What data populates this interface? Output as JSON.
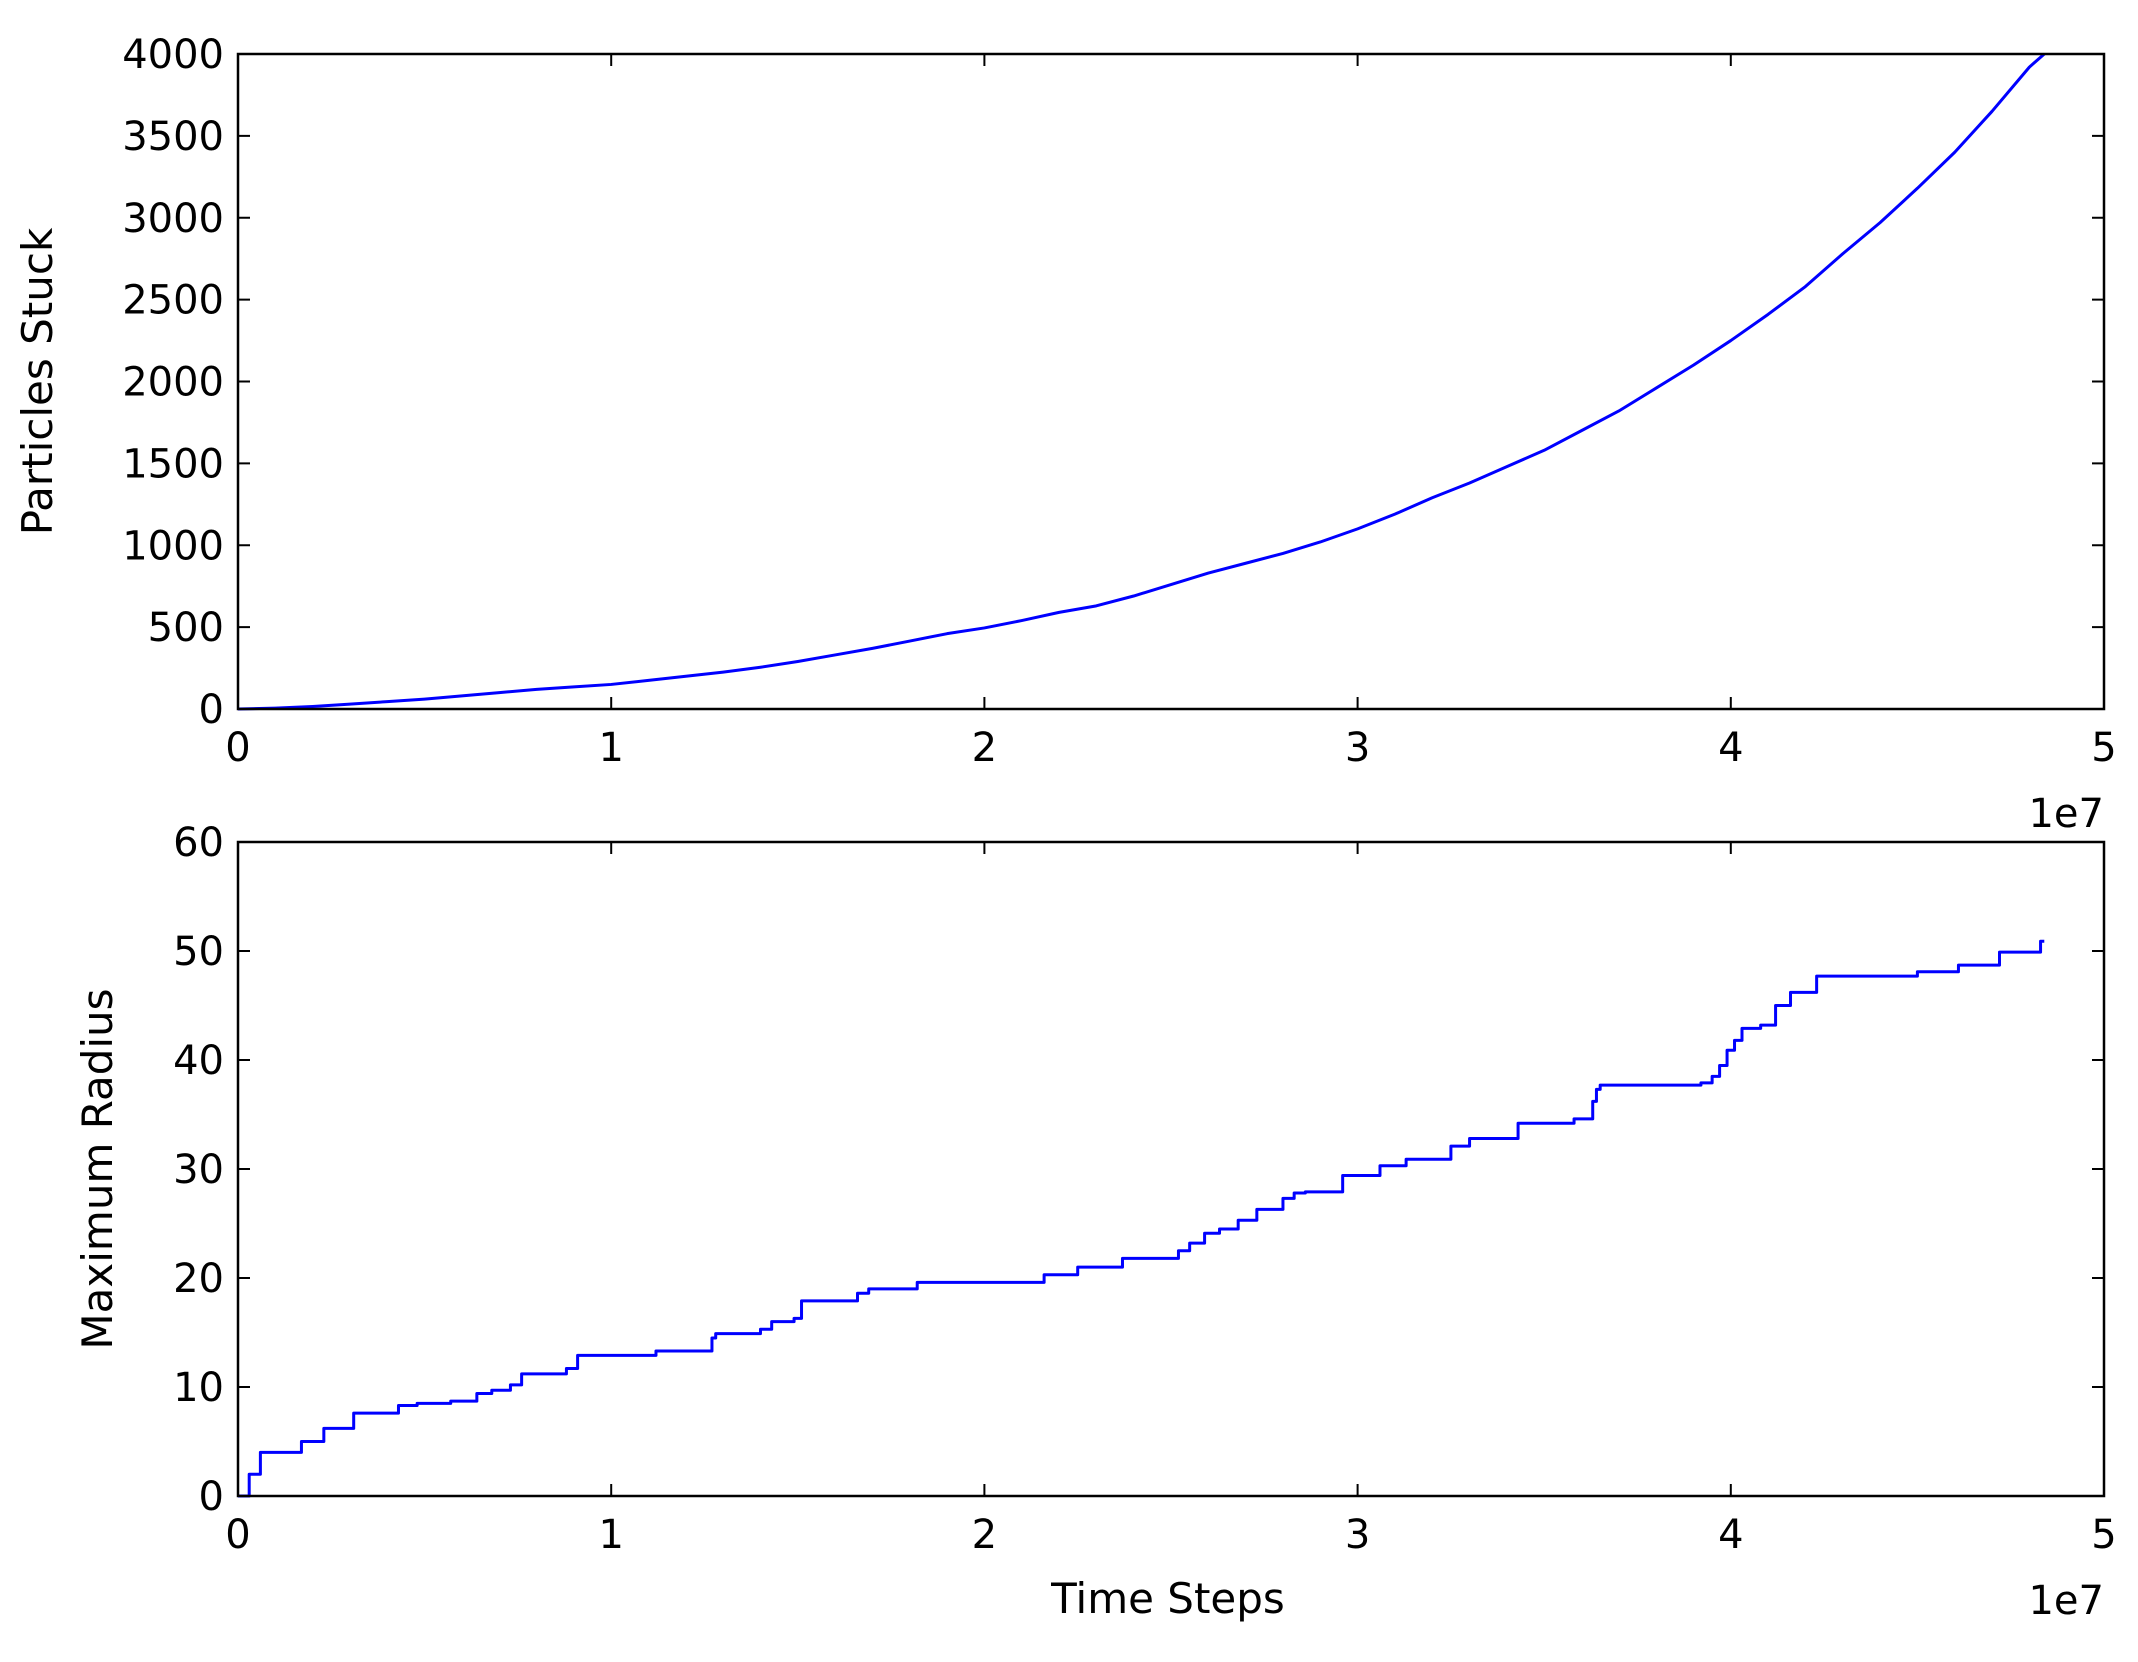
{
  "chart_data": [
    {
      "type": "line",
      "title": "",
      "xlabel": "",
      "ylabel": "Particles Stuck",
      "xlim": [
        0,
        50000000
      ],
      "ylim": [
        0,
        4000
      ],
      "x_offset_label": "1e7",
      "xticks": [
        0,
        10000000,
        20000000,
        30000000,
        40000000,
        50000000
      ],
      "xtick_labels": [
        "0",
        "1",
        "2",
        "3",
        "4",
        "5"
      ],
      "yticks": [
        0,
        500,
        1000,
        1500,
        2000,
        2500,
        3000,
        3500,
        4000
      ],
      "ytick_labels": [
        "0",
        "500",
        "1000",
        "1500",
        "2000",
        "2500",
        "3000",
        "3500",
        "4000"
      ],
      "grid": false,
      "series": [
        {
          "color": "#0000ff",
          "step": false,
          "x": [
            0,
            1000000,
            2000000,
            3000000,
            4000000,
            5000000,
            6000000,
            7000000,
            8000000,
            9000000,
            10000000,
            11000000,
            12000000,
            13000000,
            14000000,
            15000000,
            16000000,
            17000000,
            18000000,
            19000000,
            20000000,
            21000000,
            22000000,
            23000000,
            24000000,
            25000000,
            26000000,
            27000000,
            28000000,
            29000000,
            30000000,
            31000000,
            32000000,
            33000000,
            34000000,
            35000000,
            36000000,
            37000000,
            38000000,
            39000000,
            40000000,
            41000000,
            42000000,
            43000000,
            44000000,
            45000000,
            46000000,
            47000000,
            48000000,
            48400000
          ],
          "y": [
            0,
            5,
            15,
            30,
            45,
            60,
            80,
            100,
            120,
            135,
            150,
            175,
            200,
            225,
            255,
            290,
            330,
            370,
            415,
            460,
            495,
            540,
            590,
            630,
            690,
            760,
            830,
            890,
            950,
            1020,
            1100,
            1190,
            1290,
            1380,
            1480,
            1580,
            1700,
            1820,
            1960,
            2100,
            2250,
            2410,
            2580,
            2780,
            2970,
            3180,
            3400,
            3650,
            3920,
            4000
          ]
        }
      ]
    },
    {
      "type": "line",
      "title": "",
      "xlabel": "Time Steps",
      "ylabel": "Maximum Radius",
      "xlim": [
        0,
        50000000
      ],
      "ylim": [
        0,
        60
      ],
      "x_offset_label": "1e7",
      "xticks": [
        0,
        10000000,
        20000000,
        30000000,
        40000000,
        50000000
      ],
      "xtick_labels": [
        "0",
        "1",
        "2",
        "3",
        "4",
        "5"
      ],
      "yticks": [
        0,
        10,
        20,
        30,
        40,
        50,
        60
      ],
      "ytick_labels": [
        "0",
        "10",
        "20",
        "30",
        "40",
        "50",
        "60"
      ],
      "grid": false,
      "series": [
        {
          "color": "#0000ff",
          "step": true,
          "x": [
            0,
            300000,
            600000,
            1700000,
            2300000,
            3100000,
            4300000,
            4800000,
            5100000,
            5700000,
            6400000,
            6800000,
            7300000,
            7600000,
            8800000,
            9100000,
            11200000,
            12700000,
            12800000,
            14000000,
            14300000,
            14900000,
            15100000,
            16600000,
            16900000,
            18200000,
            21600000,
            22500000,
            23700000,
            25200000,
            25500000,
            25900000,
            26300000,
            26800000,
            27300000,
            28000000,
            28300000,
            28600000,
            29600000,
            30600000,
            31300000,
            32500000,
            33000000,
            34300000,
            35800000,
            36300000,
            36400000,
            36500000,
            39200000,
            39500000,
            39700000,
            39900000,
            40100000,
            40300000,
            40800000,
            41200000,
            41600000,
            42300000,
            45000000,
            46100000,
            47200000,
            48300000,
            48400000
          ],
          "y": [
            0,
            2,
            4,
            5,
            6.2,
            7.6,
            8.3,
            8.5,
            8.5,
            8.7,
            9.4,
            9.7,
            10.2,
            11.2,
            11.7,
            12.9,
            13.3,
            14.5,
            14.9,
            15.3,
            16,
            16.3,
            17.9,
            18.6,
            19,
            19.6,
            20.3,
            21,
            21.8,
            22.5,
            23.2,
            24.1,
            24.5,
            25.3,
            26.3,
            27.3,
            27.8,
            27.9,
            29.4,
            30.3,
            30.9,
            32.1,
            32.8,
            34.2,
            34.6,
            36.2,
            37.3,
            37.7,
            37.9,
            38.5,
            39.5,
            40.9,
            41.8,
            42.9,
            43.2,
            45,
            46.2,
            47.7,
            48.1,
            48.7,
            49.9,
            50.9,
            50.9
          ]
        }
      ]
    }
  ]
}
